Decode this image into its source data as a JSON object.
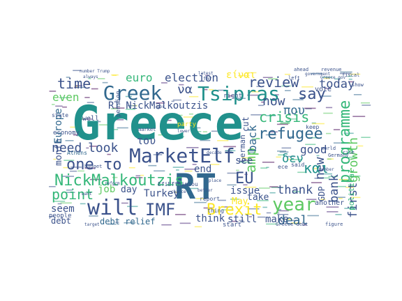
{
  "word_cloud": {
    "palette": [
      "#440154",
      "#3b528b",
      "#21918c",
      "#5ec962",
      "#fde725",
      "#31688e",
      "#35b779",
      "#482878"
    ],
    "words": [
      {
        "text": "Greece",
        "color": "#21918c"
      },
      {
        "text": "RT",
        "color": "#31688e"
      },
      {
        "text": "will",
        "color": "#3b528b"
      },
      {
        "text": "Tsipras",
        "color": "#21918c"
      },
      {
        "text": "Greek",
        "color": "#31688e"
      },
      {
        "text": "MarketElf",
        "color": "#3b528b"
      },
      {
        "text": "refugee",
        "color": "#31688e"
      },
      {
        "text": "year",
        "color": "#5ec962"
      },
      {
        "text": "NickMalkoutzis",
        "color": "#35b779"
      },
      {
        "text": "RT NickMalkoutzis",
        "color": "#3b528b"
      },
      {
        "text": "one το",
        "color": "#3b528b"
      },
      {
        "text": "IMF",
        "color": "#3b528b"
      },
      {
        "text": "Brexit",
        "color": "#fde725"
      },
      {
        "text": "EU",
        "color": "#3b528b"
      },
      {
        "text": "deal",
        "color": "#31688e"
      },
      {
        "text": "review",
        "color": "#3b528b"
      },
      {
        "text": "say",
        "color": "#3b528b"
      },
      {
        "text": "crisis",
        "color": "#35b779"
      },
      {
        "text": "now",
        "color": "#3b528b"
      },
      {
        "text": "time",
        "color": "#3b528b"
      },
      {
        "text": "even",
        "color": "#5ec962"
      },
      {
        "text": "need",
        "color": "#3b528b"
      },
      {
        "text": "look",
        "color": "#3b528b"
      },
      {
        "text": "point",
        "color": "#35b779"
      },
      {
        "text": "programme",
        "color": "#35b779"
      },
      {
        "text": "new",
        "color": "#3b528b"
      },
      {
        "text": "thank",
        "color": "#3b528b"
      },
      {
        "text": "bank",
        "color": "#3b528b"
      },
      {
        "text": "first",
        "color": "#3b528b"
      },
      {
        "text": "growth",
        "color": "#5ec962"
      },
      {
        "text": "today",
        "color": "#3b528b"
      },
      {
        "text": "good",
        "color": "#3b528b"
      },
      {
        "text": "amp",
        "color": "#5ec962"
      },
      {
        "text": "back",
        "color": "#31688e"
      },
      {
        "text": "election",
        "color": "#3b528b"
      },
      {
        "text": "euro",
        "color": "#35b779"
      },
      {
        "text": "να",
        "color": "#3b528b"
      },
      {
        "text": "και",
        "color": "#21918c"
      },
      {
        "text": "δεν",
        "color": "#21918c"
      },
      {
        "text": "που",
        "color": "#31688e"
      },
      {
        "text": "του",
        "color": "#3b528b"
      },
      {
        "text": "είναι",
        "color": "#fde725"
      },
      {
        "text": "end",
        "color": "#3b528b"
      },
      {
        "text": "see",
        "color": "#3b528b"
      },
      {
        "text": "issue",
        "color": "#3b528b"
      },
      {
        "text": "May",
        "color": "#fde725"
      },
      {
        "text": "take",
        "color": "#3b528b"
      },
      {
        "text": "Turkey",
        "color": "#3b528b"
      },
      {
        "text": "job",
        "color": "#5ec962"
      },
      {
        "text": "day",
        "color": "#3b528b"
      },
      {
        "text": "month",
        "color": "#3b528b"
      },
      {
        "text": "Europe",
        "color": "#31688e"
      },
      {
        "text": "seem",
        "color": "#3b528b"
      },
      {
        "text": "debt",
        "color": "#3b528b"
      },
      {
        "text": "debt relief",
        "color": "#31688e"
      },
      {
        "text": "think",
        "color": "#3b528b"
      },
      {
        "text": "still",
        "color": "#3b528b"
      },
      {
        "text": "make",
        "color": "#3b528b"
      },
      {
        "text": "cut",
        "color": "#3b528b"
      },
      {
        "text": "German",
        "color": "#3b528b"
      },
      {
        "text": "GDP",
        "color": "#3b528b"
      },
      {
        "text": "political",
        "color": "#35b779"
      },
      {
        "text": "vote",
        "color": "#3b528b"
      },
      {
        "text": "another",
        "color": "#3b528b"
      },
      {
        "text": "people",
        "color": "#3b528b"
      },
      {
        "text": "state",
        "color": "#3b528b"
      },
      {
        "text": "well",
        "color": "#3b528b"
      },
      {
        "text": "economy",
        "color": "#3b528b"
      },
      {
        "text": "EfiEfthimiou",
        "color": "#3b528b"
      },
      {
        "text": "Athens",
        "color": "#31688e"
      },
      {
        "text": "party",
        "color": "#fde725"
      },
      {
        "text": "start",
        "color": "#3b528b"
      },
      {
        "text": "report",
        "color": "#3b528b"
      },
      {
        "text": "thing",
        "color": "#3b528b"
      },
      {
        "text": "market",
        "color": "#3b528b"
      },
      {
        "text": "Greece debt",
        "color": "#3b528b"
      },
      {
        "text": "figure",
        "color": "#3b528b"
      },
      {
        "text": "budget",
        "color": "#3b528b"
      },
      {
        "text": "right",
        "color": "#3b528b"
      },
      {
        "text": "keep",
        "color": "#3b528b"
      },
      {
        "text": "said",
        "color": "#3b528b"
      },
      {
        "text": "world",
        "color": "#3b528b"
      },
      {
        "text": "number Trump",
        "color": "#3b528b"
      },
      {
        "text": "always",
        "color": "#3b528b"
      },
      {
        "text": "far",
        "color": "#3b528b"
      },
      {
        "text": "left",
        "color": "#3b528b"
      },
      {
        "text": "ahead",
        "color": "#3b528b"
      },
      {
        "text": "fiscal",
        "color": "#3b528b"
      },
      {
        "text": "revenue",
        "color": "#3b528b"
      },
      {
        "text": "show",
        "color": "#3b528b"
      },
      {
        "text": "rise",
        "color": "#3b528b"
      },
      {
        "text": "latest",
        "color": "#3b528b"
      },
      {
        "text": "reform",
        "color": "#3b528b"
      },
      {
        "text": "chance",
        "color": "#3b528b"
      },
      {
        "text": "better",
        "color": "#3b528b"
      },
      {
        "text": "lower",
        "color": "#3b528b"
      },
      {
        "text": "place",
        "color": "#3b528b"
      },
      {
        "text": "want",
        "color": "#3b528b"
      },
      {
        "text": "target",
        "color": "#3b528b"
      },
      {
        "text": "Germany",
        "color": "#3b528b"
      },
      {
        "text": "member",
        "color": "#3b528b"
      },
      {
        "text": "government",
        "color": "#3b528b"
      },
      {
        "text": "decade",
        "color": "#3b528b"
      },
      {
        "text": "ece",
        "color": "#3b528b"
      },
      {
        "text": "gov",
        "color": "#3b528b"
      },
      {
        "text": "Greece gov",
        "color": "#3b528b"
      },
      {
        "text": "pension",
        "color": "#3b528b"
      }
    ]
  }
}
